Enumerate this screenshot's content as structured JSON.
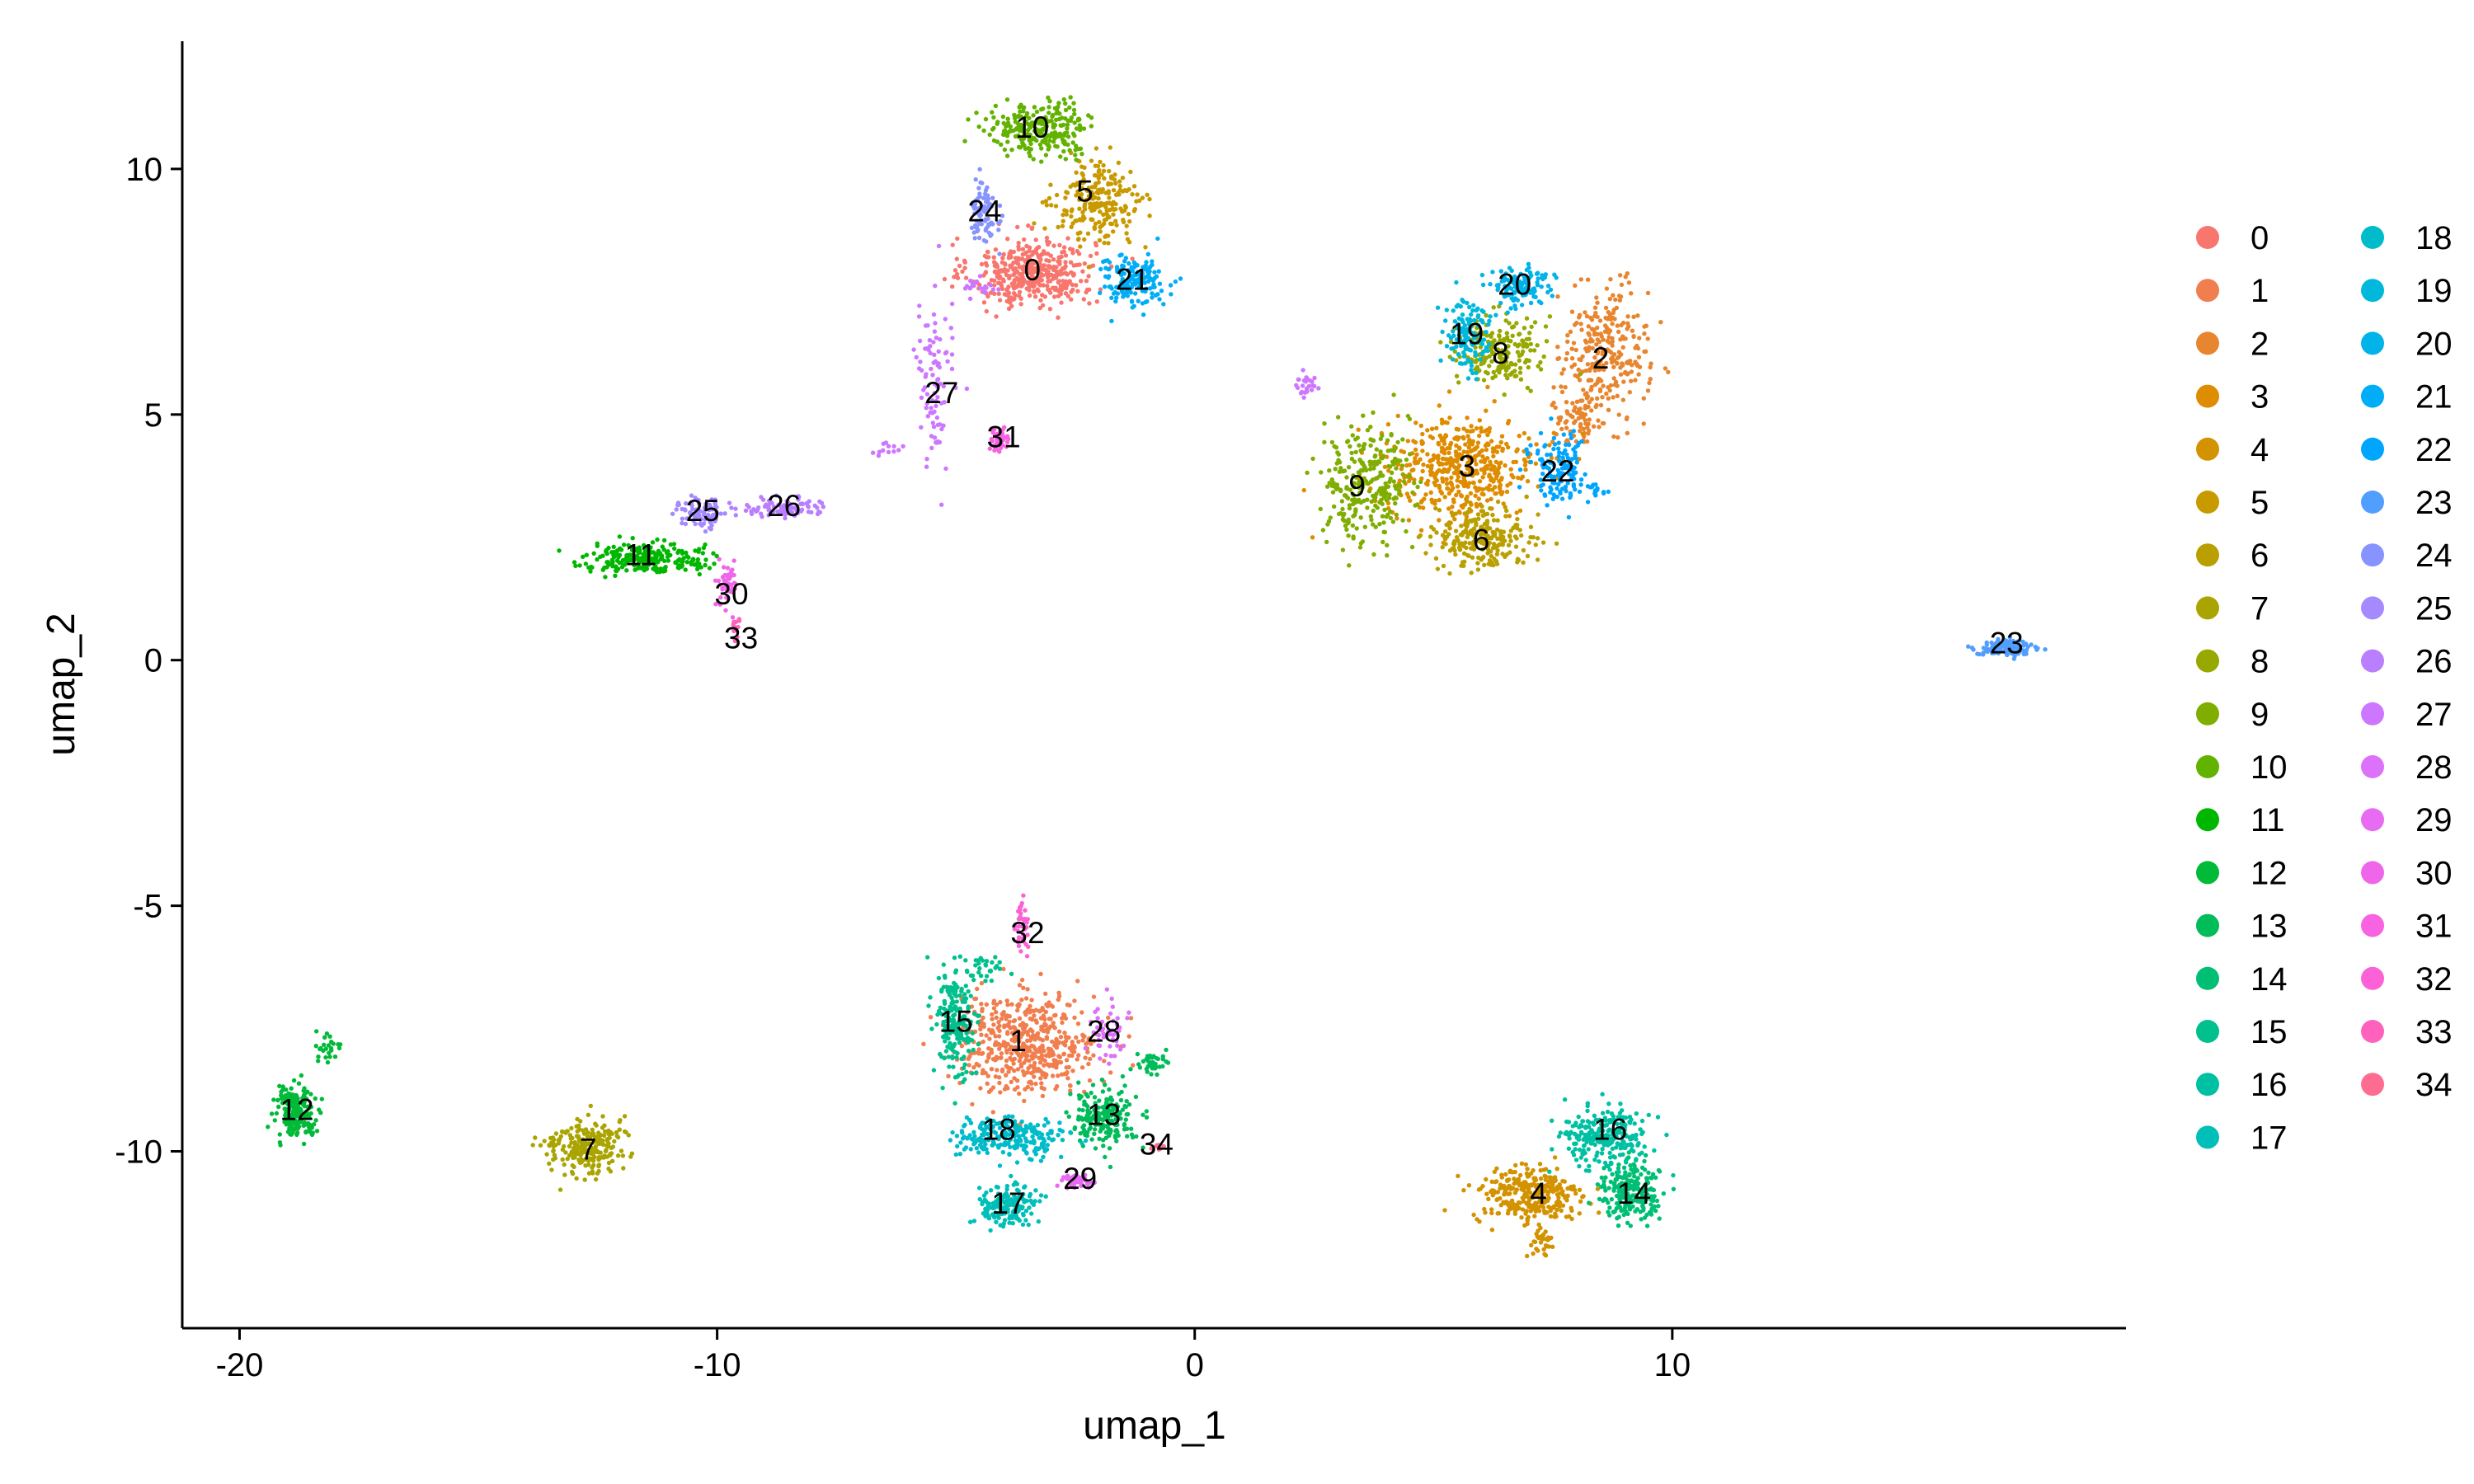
{
  "chart_data": {
    "type": "scatter",
    "title": "",
    "xlabel": "umap_1",
    "ylabel": "umap_2",
    "xlim": [
      -21.2,
      19.5
    ],
    "ylim": [
      -13.6,
      12.6
    ],
    "xticks": [
      -20,
      -10,
      0,
      10
    ],
    "xtick_labels": [
      "-20",
      "-10",
      "0",
      "10"
    ],
    "yticks": [
      -10,
      -5,
      0,
      5,
      10
    ],
    "ytick_labels": [
      "-10",
      "-5",
      "0",
      "5",
      "10"
    ],
    "grid": false,
    "legend_position": "right",
    "legend_columns": 2,
    "clusters": [
      {
        "id": "0",
        "color": "#F8766D",
        "label_pos": [
          -3.4,
          7.9
        ],
        "blobs": [
          [
            -3.4,
            7.9,
            1.3,
            0.7,
            420
          ]
        ]
      },
      {
        "id": "1",
        "color": "#F17E4E",
        "label_pos": [
          -3.7,
          -7.8
        ],
        "blobs": [
          [
            -3.5,
            -7.8,
            1.5,
            1.0,
            520
          ]
        ]
      },
      {
        "id": "2",
        "color": "#E8852F",
        "label_pos": [
          8.5,
          6.1
        ],
        "blobs": [
          [
            8.6,
            6.3,
            0.9,
            1.3,
            260
          ],
          [
            8.1,
            5.0,
            0.6,
            0.7,
            80
          ]
        ]
      },
      {
        "id": "3",
        "color": "#DE8C00",
        "label_pos": [
          5.7,
          3.9
        ],
        "blobs": [
          [
            5.6,
            3.9,
            1.6,
            1.0,
            470
          ]
        ]
      },
      {
        "id": "4",
        "color": "#D39200",
        "label_pos": [
          7.2,
          -10.9
        ],
        "blobs": [
          [
            7.0,
            -10.9,
            1.1,
            0.6,
            300
          ],
          [
            7.3,
            -11.8,
            0.3,
            0.4,
            30
          ]
        ]
      },
      {
        "id": "5",
        "color": "#C89A00",
        "label_pos": [
          -2.3,
          9.5
        ],
        "blobs": [
          [
            -2.0,
            9.3,
            0.9,
            0.8,
            230
          ]
        ]
      },
      {
        "id": "6",
        "color": "#B9A000",
        "label_pos": [
          6.0,
          2.4
        ],
        "blobs": [
          [
            6.0,
            2.5,
            1.0,
            0.6,
            230
          ]
        ]
      },
      {
        "id": "7",
        "color": "#AAA400",
        "label_pos": [
          -12.7,
          -10.0
        ],
        "blobs": [
          [
            -12.7,
            -9.9,
            0.7,
            0.6,
            230
          ],
          [
            -13.5,
            -9.9,
            0.3,
            0.2,
            15
          ]
        ]
      },
      {
        "id": "8",
        "color": "#97A900",
        "label_pos": [
          6.4,
          6.2
        ],
        "blobs": [
          [
            6.4,
            6.3,
            0.9,
            0.7,
            190
          ]
        ]
      },
      {
        "id": "9",
        "color": "#7FAE00",
        "label_pos": [
          3.4,
          3.5
        ],
        "blobs": [
          [
            3.6,
            3.6,
            0.9,
            1.2,
            280
          ]
        ]
      },
      {
        "id": "10",
        "color": "#62B200",
        "label_pos": [
          -3.4,
          10.8
        ],
        "blobs": [
          [
            -3.2,
            10.8,
            1.1,
            0.5,
            260
          ]
        ]
      },
      {
        "id": "11",
        "color": "#00B700",
        "label_pos": [
          -11.6,
          2.1
        ],
        "blobs": [
          [
            -11.6,
            2.1,
            1.2,
            0.3,
            220
          ],
          [
            -10.4,
            2.1,
            0.3,
            0.3,
            15
          ]
        ]
      },
      {
        "id": "12",
        "color": "#00BA38",
        "label_pos": [
          -18.8,
          -9.2
        ],
        "blobs": [
          [
            -18.8,
            -9.2,
            0.45,
            0.5,
            190
          ],
          [
            -18.2,
            -7.9,
            0.3,
            0.25,
            25
          ]
        ]
      },
      {
        "id": "13",
        "color": "#00BC59",
        "label_pos": [
          -1.9,
          -9.3
        ],
        "blobs": [
          [
            -1.9,
            -9.3,
            0.7,
            0.6,
            200
          ],
          [
            -0.9,
            -8.2,
            0.4,
            0.2,
            40
          ]
        ]
      },
      {
        "id": "14",
        "color": "#00BF74",
        "label_pos": [
          9.2,
          -10.9
        ],
        "blobs": [
          [
            9.1,
            -10.8,
            0.6,
            0.6,
            230
          ]
        ]
      },
      {
        "id": "15",
        "color": "#00C08D",
        "label_pos": [
          -5.0,
          -7.4
        ],
        "blobs": [
          [
            -5.0,
            -7.4,
            0.4,
            1.1,
            200
          ],
          [
            -4.4,
            -6.3,
            0.4,
            0.25,
            30
          ]
        ]
      },
      {
        "id": "16",
        "color": "#00C0A3",
        "label_pos": [
          8.7,
          -9.6
        ],
        "blobs": [
          [
            8.6,
            -9.7,
            0.9,
            0.6,
            250
          ]
        ]
      },
      {
        "id": "17",
        "color": "#00BFB8",
        "label_pos": [
          -3.9,
          -11.1
        ],
        "blobs": [
          [
            -3.9,
            -11.1,
            0.6,
            0.4,
            170
          ]
        ]
      },
      {
        "id": "18",
        "color": "#00BCCA",
        "label_pos": [
          -4.1,
          -9.6
        ],
        "blobs": [
          [
            -3.9,
            -9.7,
            1.1,
            0.4,
            240
          ]
        ]
      },
      {
        "id": "19",
        "color": "#00B8DB",
        "label_pos": [
          5.7,
          6.6
        ],
        "blobs": [
          [
            5.7,
            6.6,
            0.5,
            0.8,
            130
          ]
        ]
      },
      {
        "id": "20",
        "color": "#00B3E9",
        "label_pos": [
          6.7,
          7.6
        ],
        "blobs": [
          [
            6.8,
            7.6,
            0.6,
            0.4,
            120
          ]
        ]
      },
      {
        "id": "21",
        "color": "#00ADF6",
        "label_pos": [
          -1.3,
          7.7
        ],
        "blobs": [
          [
            -1.3,
            7.7,
            0.7,
            0.5,
            170
          ]
        ]
      },
      {
        "id": "22",
        "color": "#00A5FF",
        "label_pos": [
          7.6,
          3.8
        ],
        "blobs": [
          [
            7.6,
            3.8,
            0.6,
            0.7,
            140
          ],
          [
            8.4,
            3.5,
            0.2,
            0.15,
            12
          ]
        ]
      },
      {
        "id": "23",
        "color": "#529EFF",
        "label_pos": [
          17.0,
          0.3
        ],
        "blobs": [
          [
            17.0,
            0.25,
            0.55,
            0.18,
            130
          ]
        ]
      },
      {
        "id": "24",
        "color": "#8794FF",
        "label_pos": [
          -4.4,
          9.1
        ],
        "blobs": [
          [
            -4.4,
            9.1,
            0.35,
            0.6,
            80
          ]
        ]
      },
      {
        "id": "25",
        "color": "#A58AFF",
        "label_pos": [
          -10.3,
          3.0
        ],
        "blobs": [
          [
            -10.3,
            3.0,
            0.5,
            0.3,
            90
          ]
        ]
      },
      {
        "id": "26",
        "color": "#BA7FFF",
        "label_pos": [
          -8.6,
          3.1
        ],
        "blobs": [
          [
            -8.6,
            3.1,
            0.9,
            0.2,
            90
          ]
        ]
      },
      {
        "id": "27",
        "color": "#CD76FF",
        "label_pos": [
          -5.3,
          5.4
        ],
        "blobs": [
          [
            -5.5,
            5.5,
            0.4,
            1.8,
            90
          ],
          [
            -4.6,
            7.6,
            0.4,
            0.2,
            20
          ],
          [
            2.3,
            5.6,
            0.3,
            0.2,
            25
          ],
          [
            -6.4,
            4.3,
            0.3,
            0.1,
            12
          ]
        ]
      },
      {
        "id": "28",
        "color": "#DC71FA",
        "label_pos": [
          -1.9,
          -7.6
        ],
        "blobs": [
          [
            -1.8,
            -7.6,
            0.4,
            0.6,
            50
          ]
        ]
      },
      {
        "id": "29",
        "color": "#E76BF3",
        "label_pos": [
          -2.4,
          -10.6
        ],
        "blobs": [
          [
            -2.4,
            -10.6,
            0.4,
            0.12,
            50
          ]
        ]
      },
      {
        "id": "30",
        "color": "#F066EA",
        "label_pos": [
          -9.7,
          1.3
        ],
        "blobs": [
          [
            -9.8,
            1.5,
            0.2,
            0.5,
            45
          ]
        ]
      },
      {
        "id": "31",
        "color": "#F763E0",
        "label_pos": [
          -4.0,
          4.5
        ],
        "blobs": [
          [
            -4.1,
            4.5,
            0.2,
            0.25,
            45
          ]
        ]
      },
      {
        "id": "32",
        "color": "#FC61D5",
        "label_pos": [
          -3.5,
          -5.6
        ],
        "blobs": [
          [
            -3.6,
            -5.4,
            0.15,
            0.5,
            35
          ]
        ]
      },
      {
        "id": "33",
        "color": "#FF62BC",
        "label_pos": [
          -9.5,
          0.4
        ],
        "blobs": [
          [
            -9.6,
            0.6,
            0.1,
            0.3,
            15
          ]
        ]
      },
      {
        "id": "34",
        "color": "#FF6C91",
        "label_pos": [
          -0.8,
          -9.9
        ],
        "blobs": [
          [
            -0.8,
            -9.9,
            0.15,
            0.1,
            10
          ]
        ]
      }
    ]
  }
}
